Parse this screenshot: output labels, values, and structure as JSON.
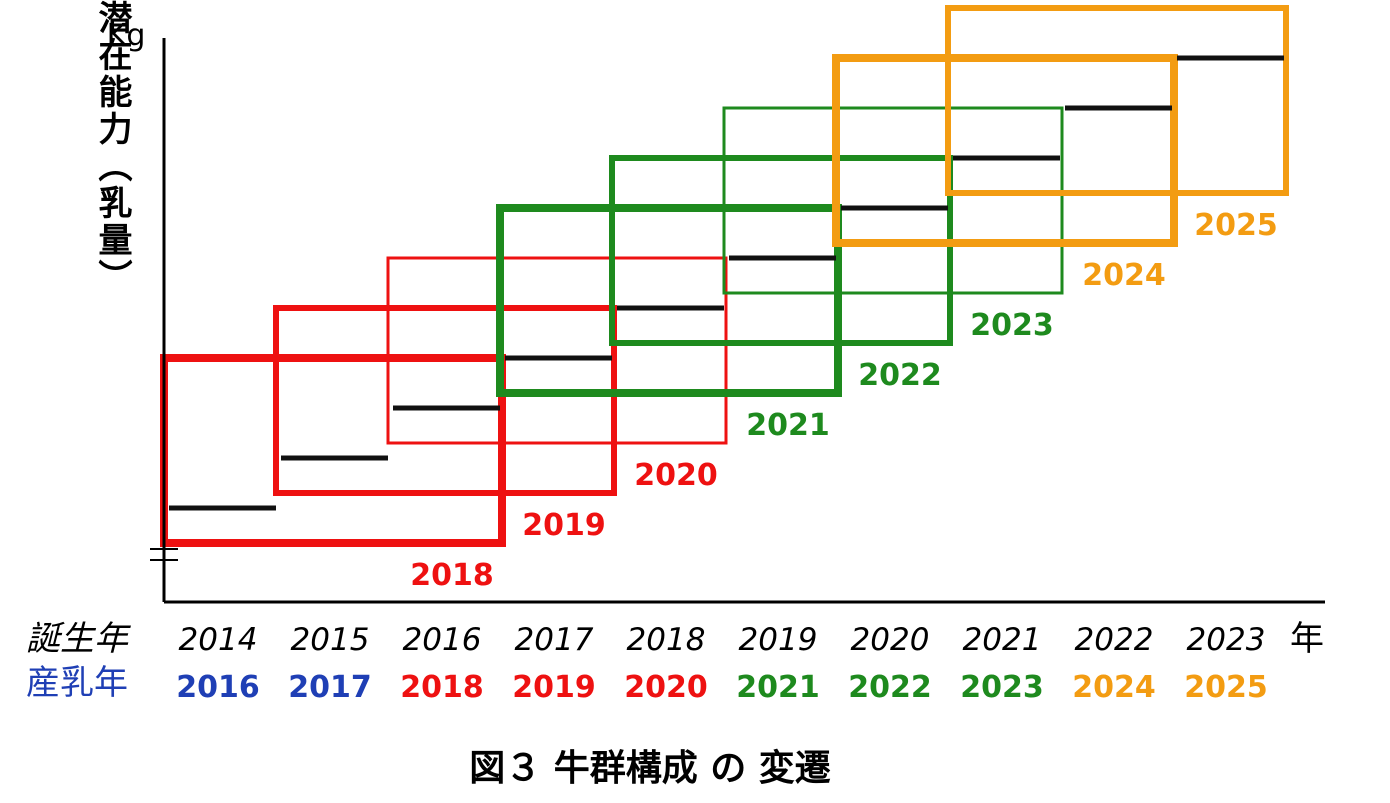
{
  "chart_data": {
    "type": "diagram",
    "title": "図３ 牛群構成 の 変遷",
    "ylabel": "メス牛の潜在能力（乳量）",
    "yunit": "Kg",
    "row_labels": {
      "birth_year": "誕生年",
      "lactation_year": "産乳年"
    },
    "x_unit": "年",
    "birth_years": [
      "2014",
      "2015",
      "2016",
      "2017",
      "2018",
      "2019",
      "2020",
      "2021",
      "2022",
      "2023"
    ],
    "lactation_years": [
      "2016",
      "2017",
      "2018",
      "2019",
      "2020",
      "2021",
      "2022",
      "2023",
      "2024",
      "2025"
    ],
    "lactation_year_colors": [
      "#1f3fb5",
      "#1f3fb5",
      "#ee1111",
      "#ee1111",
      "#ee1111",
      "#1e8a1e",
      "#1e8a1e",
      "#1e8a1e",
      "#f39c12",
      "#f39c12"
    ],
    "potential_levels": [
      1,
      2,
      3,
      4,
      5,
      6,
      7,
      8,
      9,
      10
    ],
    "herd_groups": [
      {
        "year": "2018",
        "color": "#ee1111",
        "span": [
          "2014",
          "2016"
        ],
        "weight": "thick"
      },
      {
        "year": "2019",
        "color": "#ee1111",
        "span": [
          "2015",
          "2017"
        ],
        "weight": "medium"
      },
      {
        "year": "2020",
        "color": "#ee1111",
        "span": [
          "2016",
          "2018"
        ],
        "weight": "thin"
      },
      {
        "year": "2021",
        "color": "#1e8a1e",
        "span": [
          "2017",
          "2019"
        ],
        "weight": "thick"
      },
      {
        "year": "2022",
        "color": "#1e8a1e",
        "span": [
          "2018",
          "2020"
        ],
        "weight": "medium"
      },
      {
        "year": "2023",
        "color": "#1e8a1e",
        "span": [
          "2019",
          "2021"
        ],
        "weight": "thin"
      },
      {
        "year": "2024",
        "color": "#f39c12",
        "span": [
          "2020",
          "2022"
        ],
        "weight": "thick"
      },
      {
        "year": "2025",
        "color": "#f39c12",
        "span": [
          "2021",
          "2023"
        ],
        "weight": "medium"
      }
    ]
  }
}
